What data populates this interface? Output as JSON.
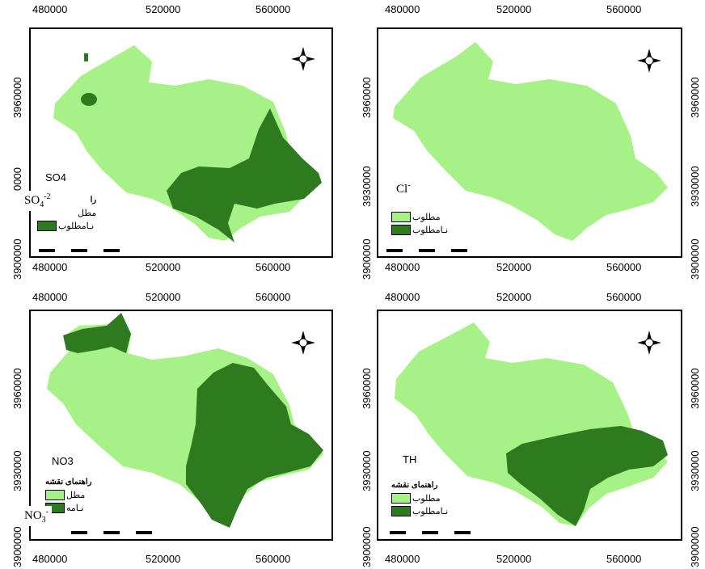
{
  "colors": {
    "desired": "#a6f287",
    "undesired": "#2d7a1f",
    "frame": "#000000"
  },
  "axes": {
    "x_ticks": [
      "480000",
      "520000",
      "560000"
    ],
    "y_ticks_top": [
      "3960000",
      "3930000",
      "3900000"
    ],
    "y_ticks_bottom": [
      "3960000",
      "3930000",
      "3900000"
    ],
    "partial_y_tick": "0000"
  },
  "panels": [
    {
      "label": "SO4",
      "overlay_main": "SO",
      "overlay_sub": "4",
      "overlay_sup": "-2",
      "legend": {
        "title": "را",
        "items": [
          {
            "label": "مطل",
            "class": "desired"
          },
          {
            "label": "نـامطلوب",
            "class": "undesired"
          }
        ]
      },
      "compass": {
        "n": "N",
        "s": "S",
        "e": "E",
        "w": "W"
      }
    },
    {
      "label": "",
      "overlay_main": "Cl",
      "overlay_sub": "",
      "overlay_sup": "-",
      "legend": {
        "title": "",
        "items": [
          {
            "label": "مطلوب",
            "class": "desired"
          },
          {
            "label": "نـامطلوب",
            "class": "undesired"
          }
        ]
      },
      "compass": {
        "n": "N",
        "s": "S",
        "e": "E",
        "w": "W"
      }
    },
    {
      "label": "NO3",
      "overlay_main": "NO",
      "overlay_sub": "3",
      "overlay_sup": "-",
      "legend": {
        "title": "راهنمای نقشه",
        "items": [
          {
            "label": "مطل",
            "class": "desired"
          },
          {
            "label": "نـامه",
            "class": "undesired"
          }
        ]
      },
      "compass": {
        "n": "N",
        "s": "S",
        "e": "E",
        "w": "W"
      }
    },
    {
      "label": "TH",
      "overlay_main": "",
      "overlay_sub": "",
      "overlay_sup": "",
      "legend": {
        "title": "راهنمای نقشه",
        "items": [
          {
            "label": "مطلوب",
            "class": "desired"
          },
          {
            "label": "نـامطلوب",
            "class": "undesired"
          }
        ]
      },
      "compass": {
        "n": "N",
        "s": "S",
        "e": "E",
        "w": "W"
      }
    }
  ]
}
